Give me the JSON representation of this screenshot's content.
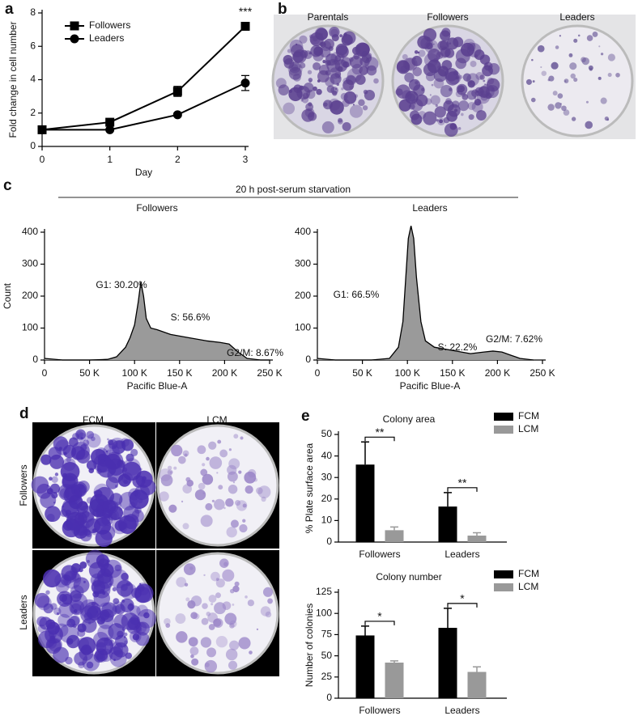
{
  "panel_labels": [
    "a",
    "b",
    "c",
    "d",
    "e"
  ],
  "photos_b": {
    "captions": [
      "Parentals",
      "Followers",
      "Leaders"
    ]
  },
  "panel_c": {
    "title": "20 h post-serum starvation"
  },
  "photos_d": {
    "columns": [
      "FCM",
      "LCM"
    ],
    "rows": [
      "Followers",
      "Leaders"
    ]
  },
  "chart_data": [
    {
      "type": "line",
      "x": [
        0,
        1,
        2,
        3
      ],
      "xlabel": "Day",
      "ylabel": "Fold change in cell number",
      "xlim": [
        0,
        3
      ],
      "ylim": [
        0,
        8
      ],
      "xticks": [
        0,
        1,
        2,
        3
      ],
      "yticks": [
        0,
        2,
        4,
        6,
        8
      ],
      "legend": "upper left",
      "annotations": [
        "***"
      ],
      "series": [
        {
          "name": "Followers",
          "color": "#000000",
          "marker": "square",
          "values": [
            1,
            1.45,
            3.3,
            7.2
          ],
          "errors": [
            0.05,
            0.1,
            0.3,
            0.1
          ]
        },
        {
          "name": "Leaders",
          "color": "#000000",
          "marker": "circle",
          "values": [
            1,
            1.0,
            1.9,
            3.8
          ],
          "errors": [
            0.05,
            0.05,
            0.1,
            0.45
          ]
        }
      ]
    },
    {
      "type": "area",
      "title": "Followers",
      "xlabel": "Pacific Blue-A",
      "ylabel": "Count",
      "xlim": [
        0,
        250000
      ],
      "ylim": [
        0,
        400
      ],
      "xticks": [
        0,
        {
          "value": 50000,
          "label": "50 K"
        },
        {
          "value": 100000,
          "label": "100 K"
        },
        {
          "value": 150000,
          "label": "150 K"
        },
        {
          "value": 200000,
          "label": "200 K"
        },
        {
          "value": 250000,
          "label": "250 K"
        }
      ],
      "yticks": [
        0,
        100,
        200,
        300,
        400
      ],
      "color": "#9a9a9a",
      "annotations": [
        "G1: 30.20%",
        "S: 56.6%",
        "G2/M: 8.67%"
      ],
      "x": [
        0,
        20000,
        50000,
        70000,
        80000,
        90000,
        95000,
        100000,
        104000,
        107000,
        110000,
        113000,
        118000,
        125000,
        140000,
        160000,
        180000,
        195000,
        205000,
        215000,
        225000,
        240000,
        250000
      ],
      "values": [
        5,
        0,
        0,
        2,
        10,
        40,
        70,
        110,
        180,
        245,
        200,
        130,
        100,
        95,
        80,
        70,
        60,
        55,
        50,
        25,
        5,
        0,
        0
      ]
    },
    {
      "type": "area",
      "title": "Leaders",
      "xlabel": "Pacific Blue-A",
      "xlim": [
        0,
        250000
      ],
      "ylim": [
        0,
        400
      ],
      "xticks": [
        0,
        {
          "value": 50000,
          "label": "50 K"
        },
        {
          "value": 100000,
          "label": "100 K"
        },
        {
          "value": 150000,
          "label": "150 K"
        },
        {
          "value": 200000,
          "label": "200 K"
        },
        {
          "value": 250000,
          "label": "250 K"
        }
      ],
      "yticks": [
        0,
        100,
        200,
        300,
        400
      ],
      "color": "#9a9a9a",
      "annotations": [
        "G1: 66.5%",
        "S: 22.2%",
        "G2/M: 7.62%"
      ],
      "x": [
        0,
        20000,
        60000,
        80000,
        90000,
        95000,
        98000,
        101000,
        104000,
        107000,
        110000,
        115000,
        120000,
        130000,
        150000,
        170000,
        185000,
        195000,
        205000,
        215000,
        225000,
        240000
      ],
      "values": [
        5,
        0,
        0,
        5,
        40,
        120,
        250,
        380,
        420,
        380,
        260,
        120,
        60,
        40,
        30,
        20,
        25,
        28,
        25,
        15,
        5,
        0
      ]
    },
    {
      "type": "bar",
      "title": "Colony area",
      "ylabel": "% Plate surface area",
      "categories": [
        "Followers",
        "Leaders"
      ],
      "ylim": [
        0,
        50
      ],
      "yticks": [
        0,
        10,
        20,
        30,
        40,
        50
      ],
      "legend": "upper right",
      "annotations": [
        "**",
        "**"
      ],
      "series": [
        {
          "name": "FCM",
          "color": "#000000",
          "values": [
            36,
            16.5
          ],
          "errors": [
            10.5,
            6.5
          ]
        },
        {
          "name": "LCM",
          "color": "#999999",
          "values": [
            5.5,
            3
          ],
          "errors": [
            1.5,
            1.3
          ]
        }
      ]
    },
    {
      "type": "bar",
      "title": "Colony number",
      "ylabel": "Number of colonies",
      "categories": [
        "Followers",
        "Leaders"
      ],
      "ylim": [
        0,
        125
      ],
      "yticks": [
        0,
        25,
        50,
        75,
        100,
        125
      ],
      "legend": "upper right",
      "annotations": [
        "*",
        "*"
      ],
      "series": [
        {
          "name": "FCM",
          "color": "#000000",
          "values": [
            74,
            83
          ],
          "errors": [
            11,
            23
          ]
        },
        {
          "name": "LCM",
          "color": "#999999",
          "values": [
            42,
            31
          ],
          "errors": [
            2,
            6
          ]
        }
      ]
    }
  ]
}
